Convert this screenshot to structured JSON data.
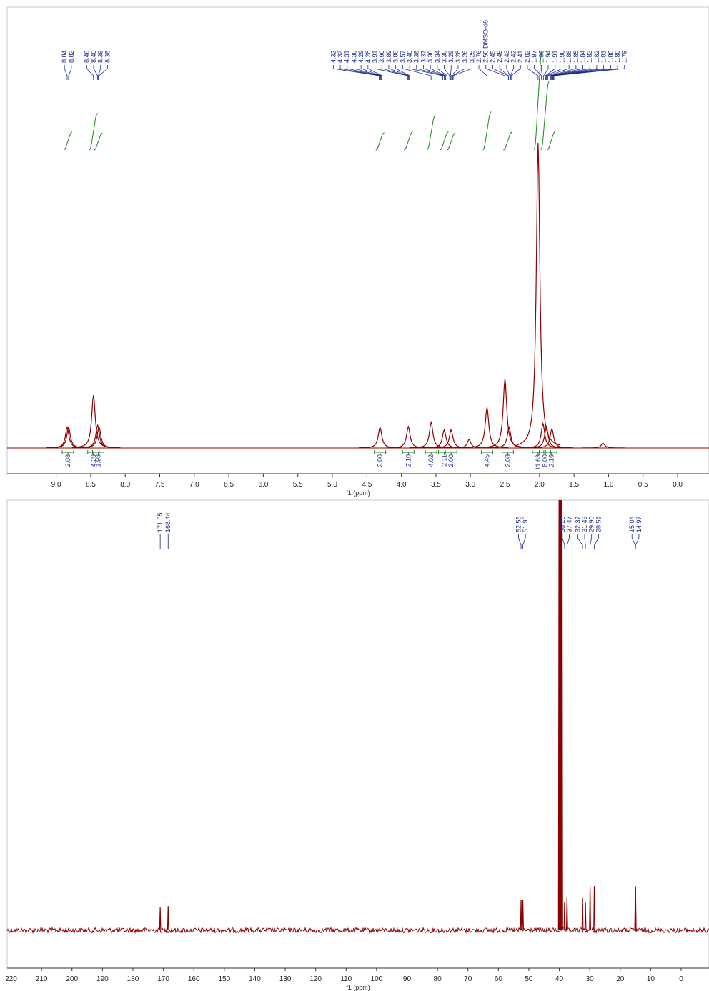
{
  "chart_data": [
    {
      "type": "nmr",
      "x_label": "f1 (ppm)",
      "xlim": [
        9.71,
        -0.455
      ],
      "ylim": [
        0,
        100
      ],
      "xticks": [
        {
          "value": 9,
          "label": "9.0"
        },
        8.5,
        {
          "value": 8,
          "label": "8.0"
        },
        7.5,
        {
          "value": 7,
          "label": "7.0"
        },
        6.5,
        {
          "value": 6,
          "label": "6.0"
        },
        5.5,
        {
          "value": 5,
          "label": "5.0"
        },
        4.5,
        {
          "value": 4,
          "label": "4.0"
        },
        3.5,
        {
          "value": 3,
          "label": "3.0"
        },
        2.5,
        {
          "value": 2,
          "label": "2.0"
        },
        1.5,
        {
          "value": 1,
          "label": "1.0"
        },
        0.5,
        {
          "value": 0,
          "label": "0.0"
        }
      ],
      "color": "#8b0000",
      "label_color": "#1a2a8c",
      "integral_color": "#1f8a1f",
      "peaks": {
        "x": [
          8.84,
          8.82,
          8.46,
          8.4,
          8.38,
          4.31,
          3.9,
          3.57,
          3.38,
          3.28,
          3.02,
          2.76,
          2.5,
          2.44,
          2.02,
          1.95,
          1.9,
          1.82,
          1.08
        ],
        "values": [
          6.8,
          6.8,
          17.3,
          7.5,
          7,
          6.8,
          7,
          8.4,
          6,
          6,
          2.8,
          13.3,
          22.7,
          6.8,
          100,
          8,
          7,
          6.3,
          1.6
        ]
      },
      "peak_labels": {
        "values": [
          8.84,
          8.82,
          8.46,
          8.4,
          8.39,
          8.38,
          4.32,
          4.32,
          4.31,
          4.3,
          4.29,
          4.28,
          3.91,
          3.9,
          3.89,
          3.88,
          3.57,
          3.4,
          3.38,
          3.37,
          3.36,
          3.34,
          3.3,
          3.29,
          3.28,
          3.26,
          3.25,
          2.76,
          2.5,
          2.45,
          2.45,
          2.43,
          2.42,
          2.41,
          2.02,
          1.97,
          1.96,
          1.94,
          1.91,
          1.9,
          1.88,
          1.85,
          1.84,
          1.83,
          1.82,
          1.81,
          1.8,
          1.8,
          1.79
        ],
        "value_labels": [
          "8.84",
          "8.82",
          "8.46",
          "8.40",
          "8.39",
          "8.38",
          "4.32",
          "4.32",
          "4.31",
          "4.30",
          "4.29",
          "4.28",
          "3.91",
          "3.90",
          "3.89",
          "3.88",
          "3.57",
          "3.40",
          "3.38",
          "3.37",
          "3.36",
          "3.34",
          "3.30",
          "3.29",
          "3.28",
          "3.26",
          "3.25",
          "2.76",
          "2.50 DMSO-d6",
          "2.45",
          "2.45",
          "2.43",
          "2.42",
          "2.41",
          "2.02",
          "1.97",
          "1.96",
          "1.94",
          "1.91",
          "1.90",
          "1.88",
          "1.85",
          "1.84",
          "1.83",
          "1.82",
          "1.81",
          "1.80",
          "1.80",
          "1.79"
        ]
      },
      "integrals": {
        "x": [
          8.83,
          8.46,
          8.39,
          4.31,
          3.9,
          3.57,
          3.38,
          3.28,
          2.76,
          2.46,
          2.02,
          1.92,
          1.83
        ],
        "values": [
          2.08,
          4.29,
          1.98,
          2.0,
          2.1,
          4.02,
          2.11,
          2.0,
          4.45,
          2.08,
          11.63,
          8.0,
          2.16
        ],
        "value_labels": [
          "2.08",
          "4.29",
          "1.98",
          "2.00",
          "2.10",
          "4.02",
          "2.11",
          "2.00",
          "4.45",
          "2.08",
          "11.63",
          "8.00",
          "2.16"
        ]
      }
    },
    {
      "type": "nmr",
      "x_label": "f1 (ppm)",
      "xlim": [
        221.3,
        -9.15
      ],
      "ylim": [
        0,
        100
      ],
      "xticks": [
        220,
        210,
        200,
        190,
        180,
        170,
        160,
        150,
        140,
        130,
        120,
        110,
        100,
        90,
        80,
        70,
        60,
        50,
        40,
        30,
        20,
        10,
        0
      ],
      "color": "#8b0000",
      "label_color": "#1a2a8c",
      "peaks": {
        "x": [
          171.05,
          168.44,
          52.56,
          51.96,
          40.1,
          39.9,
          39.7,
          39.5,
          39.3,
          39.1,
          38.26,
          37.47,
          32.37,
          31.43,
          29.9,
          28.51,
          15.04,
          14.97
        ],
        "values": [
          5.3,
          5.6,
          7.1,
          7,
          100,
          100,
          100,
          100,
          100,
          100,
          6.6,
          7.8,
          7.5,
          6.6,
          10.3,
          10.3,
          10.3,
          10
        ]
      },
      "peak_labels": {
        "values": [
          171.05,
          168.44,
          52.56,
          51.96,
          38.26,
          37.47,
          32.37,
          31.43,
          29.9,
          28.51,
          15.04,
          14.97
        ],
        "value_labels": [
          "171.05",
          "168.44",
          "52.56",
          "51.96",
          "38.26",
          "37.47",
          "32.37",
          "31.43",
          "29.90",
          "28.51",
          "15.04",
          "14.97"
        ]
      }
    }
  ]
}
